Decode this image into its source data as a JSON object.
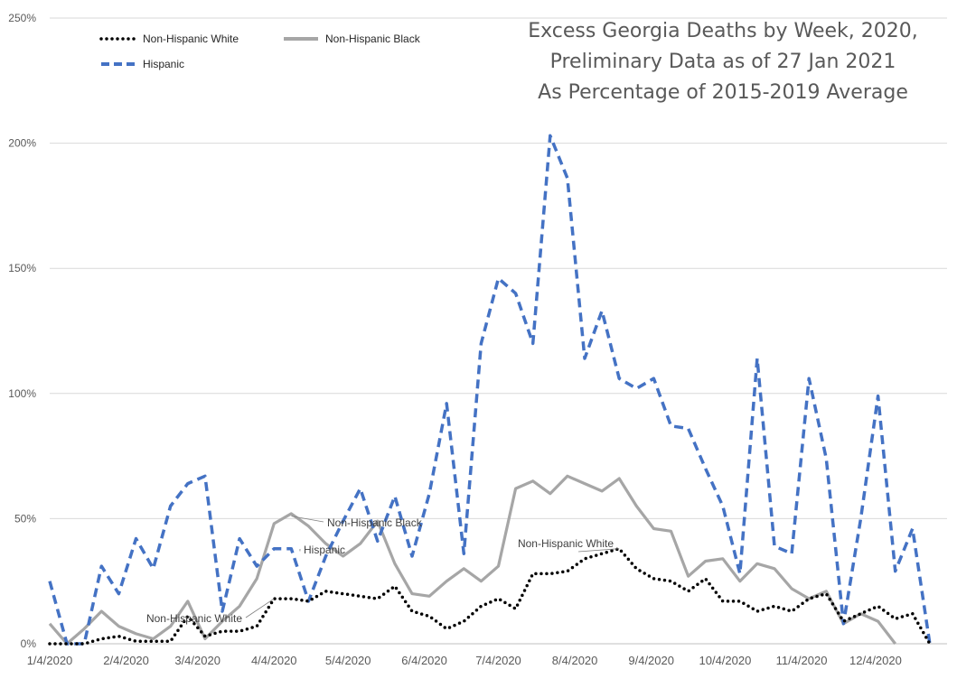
{
  "chart_data": {
    "type": "line",
    "title_lines": [
      "Excess Georgia Deaths by Week, 2020,",
      "Preliminary Data as of 27 Jan 2021",
      "As Percentage of 2015-2019 Average"
    ],
    "xlabel": "",
    "ylabel": "",
    "ylim": [
      0,
      250
    ],
    "y_ticks": [
      "0%",
      "50%",
      "100%",
      "150%",
      "200%",
      "250%"
    ],
    "y_tick_values": [
      0,
      50,
      100,
      150,
      200,
      250
    ],
    "x_tick_labels": [
      "1/4/2020",
      "2/4/2020",
      "3/4/2020",
      "4/4/2020",
      "5/4/2020",
      "6/4/2020",
      "7/4/2020",
      "8/4/2020",
      "9/4/2020",
      "10/4/2020",
      "11/4/2020",
      "12/4/2020"
    ],
    "x_tick_weeks": [
      0,
      4.43,
      8.57,
      13,
      17.29,
      21.71,
      26,
      30.43,
      34.86,
      39.14,
      43.57,
      47.86
    ],
    "x_range_weeks": [
      0,
      52
    ],
    "grid": true,
    "legend_position": "top-left",
    "legend": [
      "Non-Hispanic White",
      "Non-Hispanic Black",
      "Hispanic"
    ],
    "series": [
      {
        "name": "Non-Hispanic White",
        "style": "dotted",
        "color": "#000000",
        "values": [
          0,
          0,
          0,
          2,
          3,
          1,
          1,
          1,
          11,
          3,
          5,
          5,
          7,
          18,
          18,
          17,
          21,
          20,
          19,
          18,
          23,
          13,
          11,
          6,
          9,
          15,
          18,
          14,
          28,
          28,
          29,
          34,
          36,
          38,
          30,
          26,
          25,
          21,
          26,
          17,
          17,
          13,
          15,
          13,
          18,
          20,
          9,
          12,
          15,
          10,
          12,
          0
        ]
      },
      {
        "name": "Non-Hispanic Black",
        "style": "solid",
        "color": "#a6a6a6",
        "values": [
          8,
          0,
          6,
          13,
          7,
          4,
          2,
          7,
          17,
          2,
          9,
          15,
          26,
          48,
          52,
          47,
          40,
          35,
          40,
          49,
          32,
          20,
          19,
          25,
          30,
          25,
          31,
          62,
          65,
          60,
          67,
          64,
          61,
          66,
          55,
          46,
          45,
          27,
          33,
          34,
          25,
          32,
          30,
          22,
          18,
          21,
          8,
          12,
          9,
          0,
          null,
          null
        ]
      },
      {
        "name": "Hispanic",
        "style": "dashed",
        "color": "#4472c4",
        "values": [
          25,
          0,
          0,
          31,
          20,
          42,
          30,
          55,
          64,
          67,
          13,
          42,
          31,
          38,
          38,
          17,
          35,
          49,
          62,
          41,
          59,
          35,
          60,
          96,
          36,
          120,
          146,
          140,
          120,
          203,
          186,
          114,
          133,
          106,
          102,
          106,
          87,
          86,
          70,
          55,
          28,
          114,
          39,
          36,
          106,
          74,
          8,
          50,
          99,
          29,
          46,
          0
        ]
      }
    ],
    "annotations": [
      {
        "text": "Non-Hispanic Black",
        "series": "Non-Hispanic Black",
        "week": 14,
        "value": 51
      },
      {
        "text": "Hispanic",
        "series": "Hispanic",
        "week": 14.5,
        "value": 37
      },
      {
        "text": "Non-Hispanic White",
        "series": "Non-Hispanic White",
        "week": 13,
        "value": 18
      },
      {
        "text": "Non-Hispanic White",
        "series": "Non-Hispanic White",
        "week": 33,
        "value": 38
      }
    ]
  }
}
